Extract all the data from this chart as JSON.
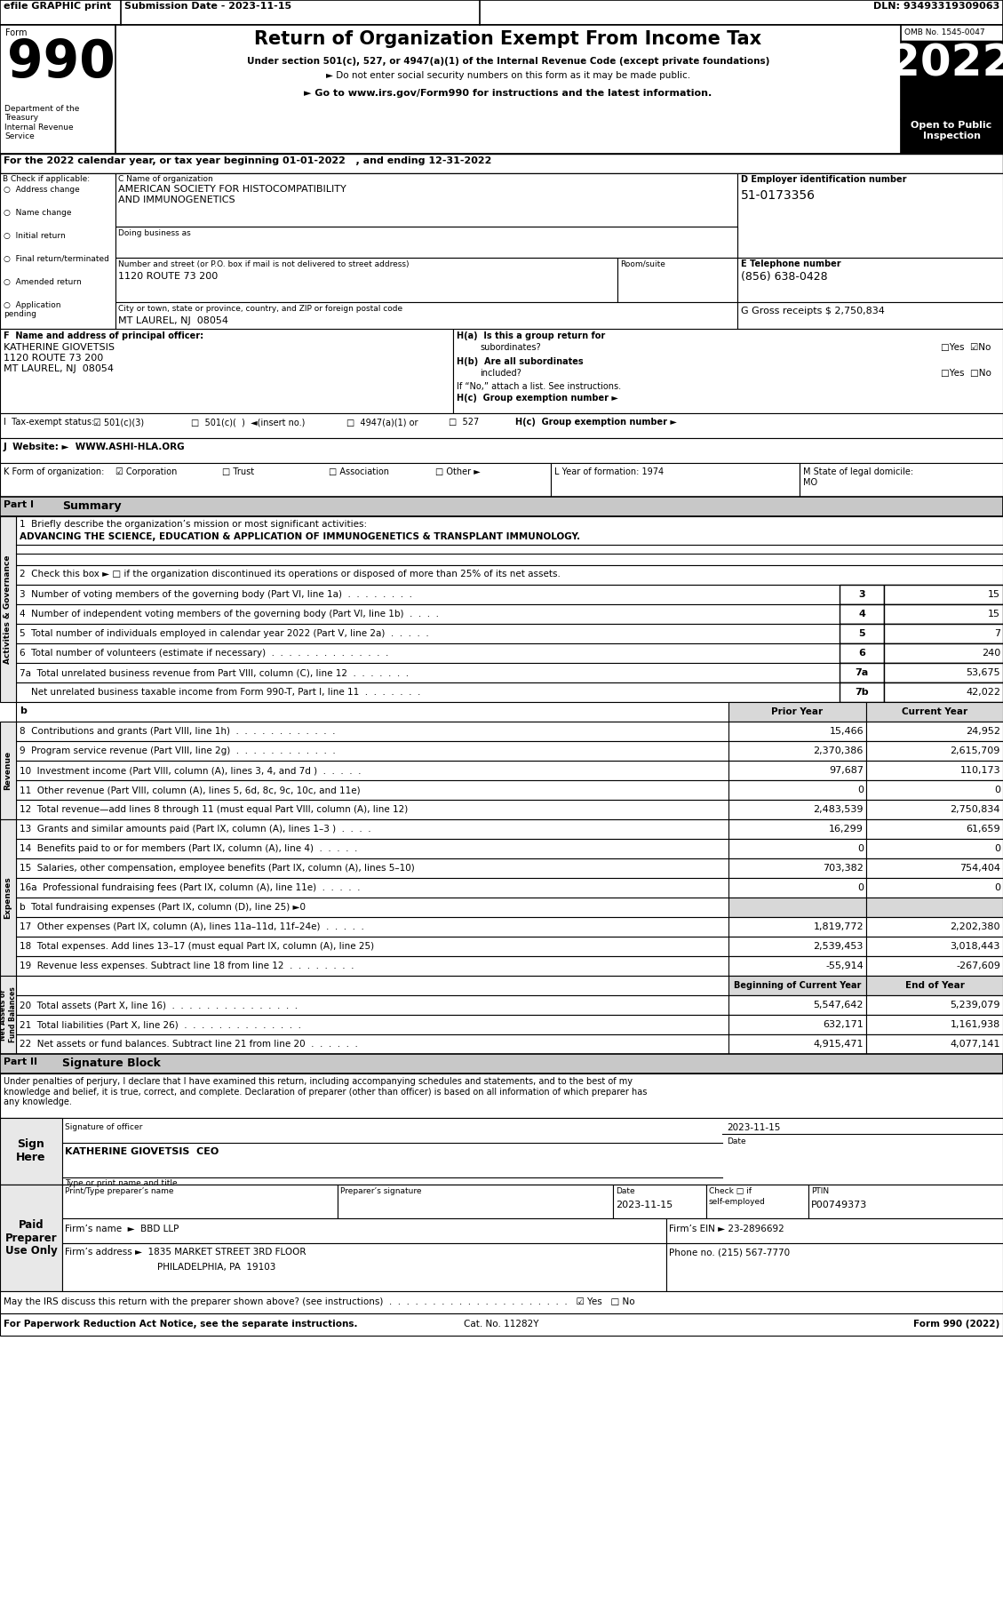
{
  "efile_text": "efile GRAPHIC print",
  "submission_date": "Submission Date - 2023-11-15",
  "dln": "DLN: 93493319309063",
  "title": "Return of Organization Exempt From Income Tax",
  "subtitle1": "Under section 501(c), 527, or 4947(a)(1) of the Internal Revenue Code (except private foundations)",
  "subtitle2": "► Do not enter social security numbers on this form as it may be made public.",
  "subtitle3": "► Go to www.irs.gov/Form990 for instructions and the latest information.",
  "omb": "OMB No. 1545-0047",
  "year": "2022",
  "open_public": "Open to Public\nInspection",
  "dept": "Department of the\nTreasury\nInternal Revenue\nService",
  "tax_year_line": "For the 2022 calendar year, or tax year beginning 01-01-2022   , and ending 12-31-2022",
  "b_label": "B Check if applicable:",
  "b_items": [
    "Address change",
    "Name change",
    "Initial return",
    "Final return/terminated",
    "Amended return",
    "Application\npending"
  ],
  "c_label": "C Name of organization",
  "org_name": "AMERICAN SOCIETY FOR HISTOCOMPATIBILITY\nAND IMMUNOGENETICS",
  "dba_label": "Doing business as",
  "address_label": "Number and street (or P.O. box if mail is not delivered to street address)",
  "address": "1120 ROUTE 73 200",
  "room_label": "Room/suite",
  "city_label": "City or town, state or province, country, and ZIP or foreign postal code",
  "city": "MT LAUREL, NJ  08054",
  "d_label": "D Employer identification number",
  "ein": "51-0173356",
  "e_label": "E Telephone number",
  "phone": "(856) 638-0428",
  "g_label": "G Gross receipts $ 2,750,834",
  "f_label": "F  Name and address of principal officer:",
  "officer_name": "KATHERINE GIOVETSIS",
  "officer_addr1": "1120 ROUTE 73 200",
  "officer_city": "MT LAUREL, NJ  08054",
  "ha_text": "H(a)  Is this a group return for",
  "ha_sub": "subordinates?",
  "ha_yn": "□Yes  ☑No",
  "hb_text": "H(b)  Are all subordinates",
  "hb_sub": "included?",
  "hb_yn": "□Yes  □No",
  "hc_text": "If “No,” attach a list. See instructions.",
  "hc_label": "H(c)  Group exemption number ►",
  "i_label": "I  Tax-exempt status:",
  "i_items": [
    "☑ 501(c)(3)",
    "□  501(c)(  )  ◄(insert no.)",
    "□  4947(a)(1) or",
    "□  527"
  ],
  "j_label": "J  Website: ►  WWW.ASHI-HLA.ORG",
  "k_label": "K Form of organization:",
  "k_items": [
    "☑ Corporation",
    "□ Trust",
    "□ Association",
    "□ Other ►"
  ],
  "l_label": "L Year of formation: 1974",
  "m_label": "M State of legal domicile:\nMO",
  "part1_label": "Part I",
  "part1_title": "Summary",
  "line1_label": "1  Briefly describe the organization’s mission or most significant activities:",
  "line1_value": "ADVANCING THE SCIENCE, EDUCATION & APPLICATION OF IMMUNOGENETICS & TRANSPLANT IMMUNOLOGY.",
  "line2_label": "2  Check this box ► □ if the organization discontinued its operations or disposed of more than 25% of its net assets.",
  "line3_label": "3  Number of voting members of the governing body (Part VI, line 1a)  .  .  .  .  .  .  .  .",
  "line3_num": "3",
  "line3_val": "15",
  "line4_label": "4  Number of independent voting members of the governing body (Part VI, line 1b)  .  .  .  .",
  "line4_num": "4",
  "line4_val": "15",
  "line5_label": "5  Total number of individuals employed in calendar year 2022 (Part V, line 2a)  .  .  .  .  .",
  "line5_num": "5",
  "line5_val": "7",
  "line6_label": "6  Total number of volunteers (estimate if necessary)  .  .  .  .  .  .  .  .  .  .  .  .  .  .",
  "line6_num": "6",
  "line6_val": "240",
  "line7a_label": "7a  Total unrelated business revenue from Part VIII, column (C), line 12  .  .  .  .  .  .  .",
  "line7a_num": "7a",
  "line7a_val": "53,675",
  "line7b_label": "    Net unrelated business taxable income from Form 990-T, Part I, line 11  .  .  .  .  .  .  .",
  "line7b_num": "7b",
  "line7b_val": "42,022",
  "b_header": "b",
  "col_prior": "Prior Year",
  "col_current": "Current Year",
  "line8_label": "8  Contributions and grants (Part VIII, line 1h)  .  .  .  .  .  .  .  .  .  .  .  .",
  "line8_prior": "15,466",
  "line8_cur": "24,952",
  "line9_label": "9  Program service revenue (Part VIII, line 2g)  .  .  .  .  .  .  .  .  .  .  .  .",
  "line9_prior": "2,370,386",
  "line9_cur": "2,615,709",
  "line10_label": "10  Investment income (Part VIII, column (A), lines 3, 4, and 7d )  .  .  .  .  .",
  "line10_prior": "97,687",
  "line10_cur": "110,173",
  "line11_label": "11  Other revenue (Part VIII, column (A), lines 5, 6d, 8c, 9c, 10c, and 11e)",
  "line11_prior": "0",
  "line11_cur": "0",
  "line12_label": "12  Total revenue—add lines 8 through 11 (must equal Part VIII, column (A), line 12)",
  "line12_prior": "2,483,539",
  "line12_cur": "2,750,834",
  "line13_label": "13  Grants and similar amounts paid (Part IX, column (A), lines 1–3 )  .  .  .  .",
  "line13_prior": "16,299",
  "line13_cur": "61,659",
  "line14_label": "14  Benefits paid to or for members (Part IX, column (A), line 4)  .  .  .  .  .",
  "line14_prior": "0",
  "line14_cur": "0",
  "line15_label": "15  Salaries, other compensation, employee benefits (Part IX, column (A), lines 5–10)",
  "line15_prior": "703,382",
  "line15_cur": "754,404",
  "line16a_label": "16a  Professional fundraising fees (Part IX, column (A), line 11e)  .  .  .  .  .",
  "line16a_prior": "0",
  "line16a_cur": "0",
  "line16b_label": "b  Total fundraising expenses (Part IX, column (D), line 25) ►0",
  "line17_label": "17  Other expenses (Part IX, column (A), lines 11a–11d, 11f–24e)  .  .  .  .  .",
  "line17_prior": "1,819,772",
  "line17_cur": "2,202,380",
  "line18_label": "18  Total expenses. Add lines 13–17 (must equal Part IX, column (A), line 25)",
  "line18_prior": "2,539,453",
  "line18_cur": "3,018,443",
  "line19_label": "19  Revenue less expenses. Subtract line 18 from line 12  .  .  .  .  .  .  .  .",
  "line19_prior": "-55,914",
  "line19_cur": "-267,609",
  "col_begin": "Beginning of Current Year",
  "col_end": "End of Year",
  "line20_label": "20  Total assets (Part X, line 16)  .  .  .  .  .  .  .  .  .  .  .  .  .  .  .",
  "line20_beg": "5,547,642",
  "line20_end": "5,239,079",
  "line21_label": "21  Total liabilities (Part X, line 26)  .  .  .  .  .  .  .  .  .  .  .  .  .  .",
  "line21_beg": "632,171",
  "line21_end": "1,161,938",
  "line22_label": "22  Net assets or fund balances. Subtract line 21 from line 20  .  .  .  .  .  .",
  "line22_beg": "4,915,471",
  "line22_end": "4,077,141",
  "part2_label": "Part II",
  "part2_title": "Signature Block",
  "sig_decl": "Under penalties of perjury, I declare that I have examined this return, including accompanying schedules and statements, and to the best of my\nknowledge and belief, it is true, correct, and complete. Declaration of preparer (other than officer) is based on all information of which preparer has\nany knowledge.",
  "sig_officer_label": "Signature of officer",
  "sig_date": "2023-11-15",
  "sig_date_label": "Date",
  "sig_name": "KATHERINE GIOVETSIS  CEO",
  "sig_title_label": "Type or print name and title",
  "print_name_label": "Print/Type preparer’s name",
  "prep_sig_label": "Preparer’s signature",
  "date_label": "Date",
  "check_label": "Check □ if\nself-employed",
  "ptin_label": "PTIN",
  "date_val": "2023-11-15",
  "ptin_val": "P00749373",
  "firm_name": "Firm’s name  ►  BBD LLP",
  "firm_ein": "Firm’s EIN ► 23-2896692",
  "firm_addr": "Firm’s address ►  1835 MARKET STREET 3RD FLOOR",
  "firm_city": "PHILADELPHIA, PA  19103",
  "phone_no": "Phone no. (215) 567-7770",
  "irs_line": "May the IRS discuss this return with the preparer shown above? (see instructions)  .  .  .  .  .  .  .  .  .  .  .  .  .  .  .  .  .  .  .  .  .",
  "irs_yes": "☑ Yes",
  "irs_no": "□ No",
  "footer_left": "For Paperwork Reduction Act Notice, see the separate instructions.",
  "footer_cat": "Cat. No. 11282Y",
  "footer_right": "Form 990 (2022)"
}
